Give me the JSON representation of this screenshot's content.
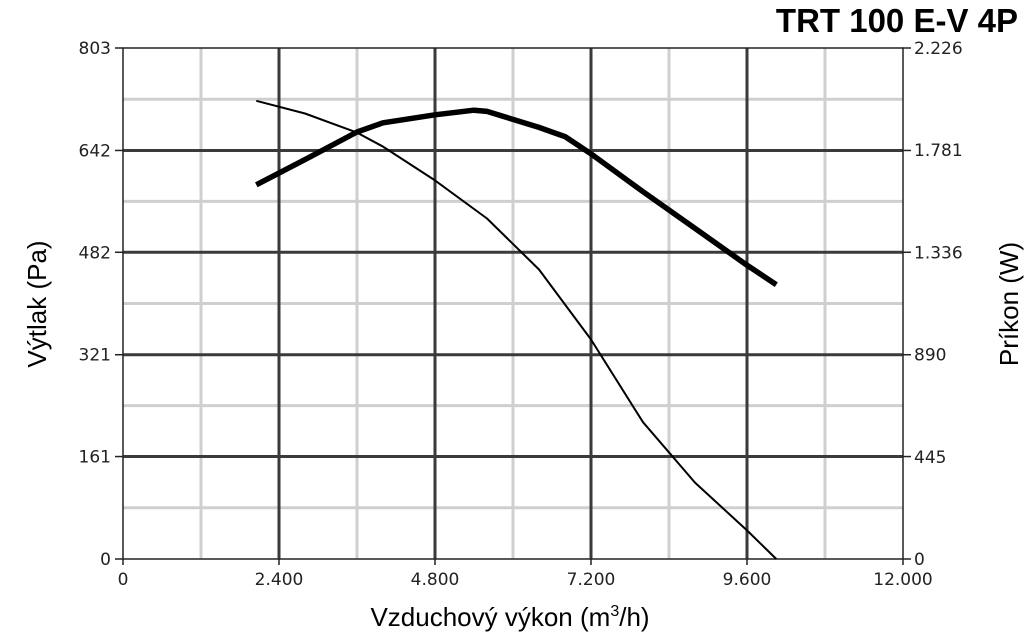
{
  "chart_data": {
    "type": "line",
    "title": "TRT 100 E-V 4P",
    "xlabel": "Vzduchový výkon (m",
    "xlabel_sup": "3",
    "xlabel_suffix": "/h)",
    "ylabel": "Výtlak (Pa)",
    "y2label": "Príkon (W)",
    "xlim": [
      0,
      12000
    ],
    "ylim": [
      0,
      803
    ],
    "y2lim": [
      0,
      2226
    ],
    "x_ticks": [
      0,
      2400,
      4800,
      7200,
      9600,
      12000
    ],
    "x_tick_labels": [
      "0",
      "2.400",
      "4.800",
      "7.200",
      "9.600",
      "12.000"
    ],
    "y_ticks": [
      0,
      161,
      321,
      482,
      642,
      803
    ],
    "y_tick_labels": [
      "0",
      "161",
      "321",
      "482",
      "642",
      "803"
    ],
    "y2_ticks": [
      0,
      445,
      890,
      1336,
      1781,
      2226
    ],
    "y2_tick_labels": [
      "0",
      "445",
      "890",
      "1.336",
      "1.781",
      "2.226"
    ],
    "grid": true,
    "series": [
      {
        "axis": "left",
        "style": "thin",
        "color": "#000000",
        "x": [
          2050,
          2800,
          3600,
          4000,
          4800,
          5600,
          6400,
          7200,
          8000,
          8800,
          9600,
          10050
        ],
        "y": [
          720,
          700,
          670,
          648,
          595,
          535,
          455,
          345,
          215,
          120,
          45,
          0
        ]
      },
      {
        "axis": "right",
        "style": "thick",
        "color": "#000000",
        "x": [
          2050,
          2800,
          3600,
          4000,
          4800,
          5400,
          5600,
          6400,
          6800,
          7200,
          8000,
          8800,
          9600,
          10050
        ],
        "y": [
          1630,
          1740,
          1860,
          1900,
          1935,
          1955,
          1950,
          1880,
          1840,
          1765,
          1600,
          1440,
          1280,
          1195
        ]
      }
    ]
  }
}
